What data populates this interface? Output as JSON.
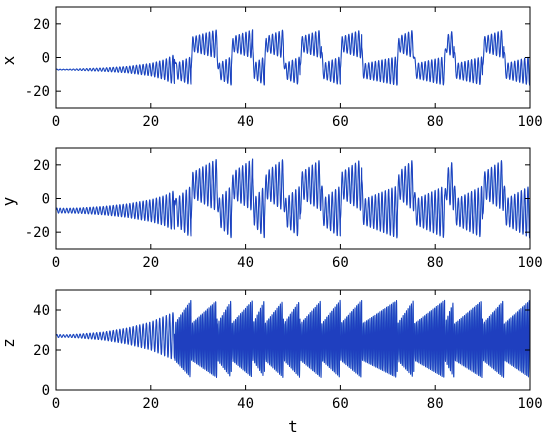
{
  "chart_data": [
    {
      "type": "line",
      "ylabel": "x",
      "xlabel": "",
      "xlim": [
        0,
        100
      ],
      "ylim": [
        -30,
        30
      ],
      "xticks": [
        0,
        20,
        40,
        60,
        80,
        100
      ],
      "yticks": [
        -20,
        0,
        20
      ],
      "line_colors": [
        "#1f3fbf",
        "#2aa8d6"
      ],
      "fixed_point": -7.2,
      "onset_t": 25,
      "envelope_t": [
        0,
        2,
        5,
        10,
        15,
        20,
        23,
        25
      ],
      "envelope_amp": [
        0.3,
        0.2,
        0.5,
        1.0,
        1.9,
        3.7,
        6.0,
        9.0
      ],
      "episodes": [
        {
          "t_start": 25.0,
          "t_end": 28.5,
          "side": "neg"
        },
        {
          "t_start": 28.5,
          "t_end": 34.0,
          "side": "pos"
        },
        {
          "t_start": 34.0,
          "t_end": 37.0,
          "side": "neg"
        },
        {
          "t_start": 37.0,
          "t_end": 41.5,
          "side": "pos"
        },
        {
          "t_start": 41.5,
          "t_end": 44.0,
          "side": "neg"
        },
        {
          "t_start": 44.0,
          "t_end": 48.0,
          "side": "pos"
        },
        {
          "t_start": 48.0,
          "t_end": 51.5,
          "side": "neg"
        },
        {
          "t_start": 51.5,
          "t_end": 56.0,
          "side": "pos"
        },
        {
          "t_start": 56.0,
          "t_end": 60.0,
          "side": "neg"
        },
        {
          "t_start": 60.0,
          "t_end": 64.5,
          "side": "pos"
        },
        {
          "t_start": 64.5,
          "t_end": 72.0,
          "side": "neg"
        },
        {
          "t_start": 72.0,
          "t_end": 75.5,
          "side": "pos"
        },
        {
          "t_start": 75.5,
          "t_end": 82.0,
          "side": "neg"
        },
        {
          "t_start": 82.0,
          "t_end": 84.0,
          "side": "pos"
        },
        {
          "t_start": 84.0,
          "t_end": 90.0,
          "side": "neg"
        },
        {
          "t_start": 90.0,
          "t_end": 94.5,
          "side": "pos"
        },
        {
          "t_start": 94.5,
          "t_end": 100.0,
          "side": "neg"
        }
      ],
      "lobe_center_abs": 8.0,
      "lobe_amp_start": 4.0,
      "lobe_amp_end": 8.5,
      "oscillation_period": 0.7
    },
    {
      "type": "line",
      "ylabel": "y",
      "xlabel": "",
      "xlim": [
        0,
        100
      ],
      "ylim": [
        -30,
        30
      ],
      "xticks": [
        0,
        20,
        40,
        60,
        80,
        100
      ],
      "yticks": [
        -20,
        0,
        20
      ],
      "line_colors": [
        "#1f3fbf",
        "#2aa8d6"
      ],
      "fixed_point": -7.2,
      "onset_t": 25,
      "envelope_t": [
        0,
        2,
        5,
        10,
        15,
        20,
        23,
        25
      ],
      "envelope_amp": [
        1.5,
        1.4,
        1.6,
        2.5,
        4.0,
        6.5,
        9.0,
        12.0
      ],
      "lobe_center_abs": 8.0,
      "lobe_amp_start": 7.0,
      "lobe_amp_end": 15.5,
      "oscillation_period": 0.7
    },
    {
      "type": "line",
      "ylabel": "z",
      "xlabel": "t",
      "xlim": [
        0,
        100
      ],
      "ylim": [
        0,
        50
      ],
      "xticks": [
        0,
        20,
        40,
        60,
        80,
        100
      ],
      "yticks": [
        0,
        20,
        40
      ],
      "line_colors": [
        "#1f3fbf",
        "#2aa8d6"
      ],
      "fixed_point": 27,
      "onset_t": 25,
      "envelope_t": [
        0,
        2,
        5,
        10,
        15,
        20,
        23,
        25
      ],
      "envelope_amp": [
        0.8,
        0.6,
        1.0,
        2.0,
        4.0,
        7.0,
        10.0,
        12.0
      ],
      "z_min_start": 15,
      "z_max_start": 33,
      "z_min_end": 6,
      "z_max_end": 45,
      "oscillation_period": 0.7
    }
  ]
}
